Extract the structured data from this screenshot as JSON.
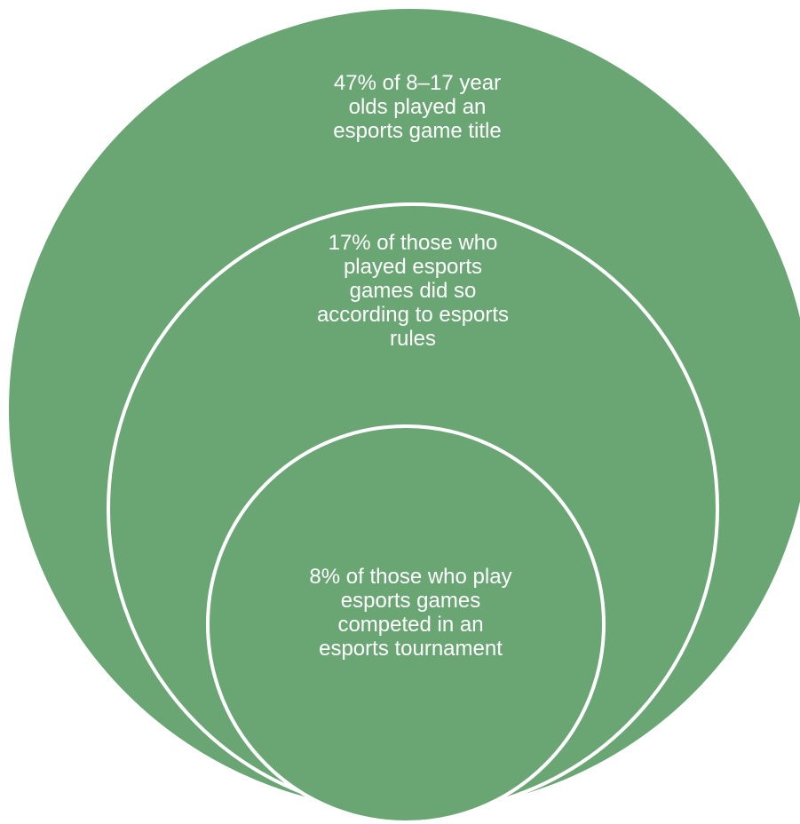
{
  "colors": {
    "circle_fill": "#6aa673",
    "circle_outline": "#ffffff",
    "text": "#ffffff",
    "background": "#ffffff"
  },
  "diagram": {
    "outer": {
      "text": "47% of 8–17 year\nolds played an\nesports game title"
    },
    "middle": {
      "text": "17% of those who\nplayed esports\ngames did so\naccording to esports\nrules"
    },
    "inner": {
      "text": "8% of those who play\nesports games\ncompeted in an\nesports tournament"
    }
  }
}
